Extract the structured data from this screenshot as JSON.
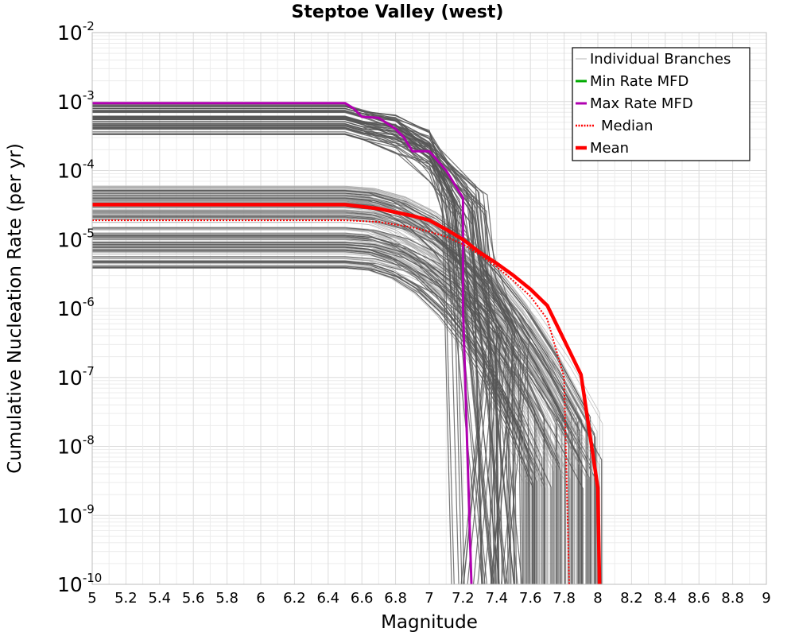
{
  "chart_data": {
    "type": "line",
    "title": "Steptoe Valley (west)",
    "xlabel": "Magnitude",
    "ylabel": "Cumulative Nucleation Rate (per yr)",
    "xlim": [
      5,
      9
    ],
    "ylim": [
      1e-10,
      0.01
    ],
    "yscale": "log",
    "grid": true,
    "legend_position": "top-right",
    "x_ticks": [
      "5",
      "5.2",
      "5.4",
      "5.6",
      "5.8",
      "6",
      "6.2",
      "6.4",
      "6.6",
      "6.8",
      "7",
      "7.2",
      "7.4",
      "7.6",
      "7.8",
      "8",
      "8.2",
      "8.4",
      "8.6",
      "8.8",
      "9"
    ],
    "y_ticks": [
      {
        "base": "10",
        "exp": "-2",
        "value": 0.01
      },
      {
        "base": "10",
        "exp": "-3",
        "value": 0.001
      },
      {
        "base": "10",
        "exp": "-4",
        "value": 0.0001
      },
      {
        "base": "10",
        "exp": "-5",
        "value": 1e-05
      },
      {
        "base": "10",
        "exp": "-6",
        "value": 1e-06
      },
      {
        "base": "10",
        "exp": "-7",
        "value": 1e-07
      },
      {
        "base": "10",
        "exp": "-8",
        "value": 1e-08
      },
      {
        "base": "10",
        "exp": "-9",
        "value": 1e-09
      },
      {
        "base": "10",
        "exp": "-10",
        "value": 1e-10
      }
    ],
    "legend": [
      {
        "label": "Individual Branches",
        "color": "#b4b4b4",
        "style": "thin"
      },
      {
        "label": "Min Rate MFD",
        "color": "#00aa00",
        "style": "solid"
      },
      {
        "label": "Max Rate MFD",
        "color": "#b000b0",
        "style": "solid"
      },
      {
        "label": "Median",
        "color": "#ff0000",
        "style": "dotted"
      },
      {
        "label": "Mean",
        "color": "#ff0000",
        "style": "thick"
      }
    ],
    "series": [
      {
        "name": "Max Rate MFD",
        "color": "#b000b0",
        "x": [
          5.0,
          6.5,
          6.55,
          6.6,
          6.7,
          6.8,
          6.85,
          6.9,
          7.0,
          7.1,
          7.2,
          7.2,
          7.25
        ],
        "y": [
          0.00095,
          0.00095,
          0.0008,
          0.0006,
          0.00058,
          0.0004,
          0.0003,
          0.00019,
          0.00019,
          0.0001,
          4e-05,
          1e-06,
          1e-10
        ]
      },
      {
        "name": "Median",
        "color": "#ff0000",
        "style": "dotted",
        "x": [
          5.0,
          6.5,
          6.7,
          6.9,
          7.0,
          7.1,
          7.2,
          7.3,
          7.4,
          7.5,
          7.6,
          7.7,
          7.8,
          7.83
        ],
        "y": [
          1.9e-05,
          1.9e-05,
          1.8e-05,
          1.5e-05,
          1.3e-05,
          1.1e-05,
          8.5e-06,
          6e-06,
          4e-06,
          2.5e-06,
          1.5e-06,
          7e-07,
          1e-07,
          1e-10
        ]
      },
      {
        "name": "Mean",
        "color": "#ff0000",
        "style": "thick",
        "x": [
          5.0,
          6.5,
          6.7,
          6.9,
          7.0,
          7.1,
          7.2,
          7.3,
          7.4,
          7.5,
          7.6,
          7.7,
          7.8,
          7.9,
          8.0,
          8.01
        ],
        "y": [
          3.2e-05,
          3.2e-05,
          2.8e-05,
          2.2e-05,
          1.9e-05,
          1.4e-05,
          1e-05,
          6.5e-06,
          4.5e-06,
          3e-06,
          1.9e-06,
          1.1e-06,
          3.5e-07,
          1.1e-07,
          2.5e-09,
          1e-10
        ]
      }
    ]
  }
}
